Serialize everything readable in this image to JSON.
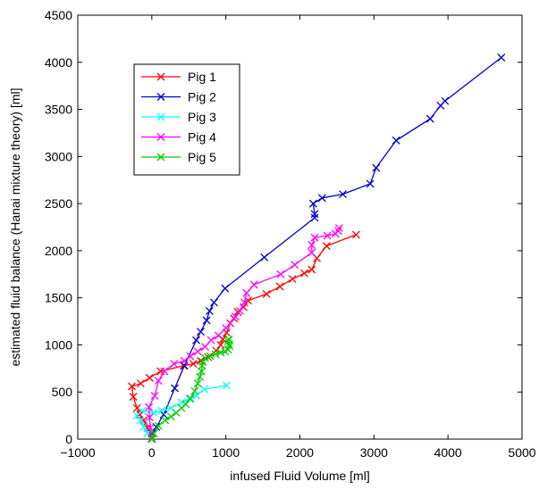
{
  "chart_data": {
    "type": "line",
    "xlabel": "infused Fluid Volume [ml]",
    "ylabel": "estimated fluid balance (Hanai mixture theory) [ml]",
    "xlim": [
      -1000,
      5000
    ],
    "ylim": [
      0,
      4500
    ],
    "xticks": [
      -1000,
      0,
      1000,
      2000,
      3000,
      4000,
      5000
    ],
    "xtick_labels": [
      "−1000",
      "0",
      "1000",
      "2000",
      "3000",
      "4000",
      "5000"
    ],
    "yticks": [
      0,
      500,
      1000,
      1500,
      2000,
      2500,
      3000,
      3500,
      4000,
      4500
    ],
    "ytick_labels": [
      "0",
      "500",
      "1000",
      "1500",
      "2000",
      "2500",
      "3000",
      "3500",
      "4000",
      "4500"
    ],
    "grid": false,
    "legend_position": "top-left",
    "marker": "x",
    "series": [
      {
        "name": "Pig 1",
        "color": "#ff0000",
        "points": [
          [
            0,
            0
          ],
          [
            -60,
            120
          ],
          [
            -110,
            200
          ],
          [
            -160,
            260
          ],
          [
            -200,
            330
          ],
          [
            -250,
            450
          ],
          [
            -270,
            560
          ],
          [
            -150,
            590
          ],
          [
            -30,
            650
          ],
          [
            120,
            720
          ],
          [
            430,
            780
          ],
          [
            560,
            800
          ],
          [
            660,
            830
          ],
          [
            760,
            870
          ],
          [
            870,
            940
          ],
          [
            930,
            1000
          ],
          [
            960,
            1060
          ],
          [
            1010,
            1130
          ],
          [
            1060,
            1230
          ],
          [
            1110,
            1280
          ],
          [
            1160,
            1350
          ],
          [
            1240,
            1400
          ],
          [
            1300,
            1470
          ],
          [
            1550,
            1540
          ],
          [
            1730,
            1620
          ],
          [
            1900,
            1700
          ],
          [
            2060,
            1760
          ],
          [
            2160,
            1800
          ],
          [
            2230,
            1920
          ],
          [
            2360,
            2050
          ],
          [
            2760,
            2170
          ]
        ]
      },
      {
        "name": "Pig 2",
        "color": "#0000cc",
        "points": [
          [
            0,
            60
          ],
          [
            60,
            130
          ],
          [
            160,
            260
          ],
          [
            310,
            540
          ],
          [
            440,
            780
          ],
          [
            600,
            1050
          ],
          [
            660,
            1140
          ],
          [
            740,
            1260
          ],
          [
            780,
            1360
          ],
          [
            840,
            1450
          ],
          [
            990,
            1600
          ],
          [
            1520,
            1930
          ],
          [
            2200,
            2350
          ],
          [
            2200,
            2390
          ],
          [
            2180,
            2500
          ],
          [
            2300,
            2560
          ],
          [
            2580,
            2600
          ],
          [
            2950,
            2710
          ],
          [
            3030,
            2880
          ],
          [
            3300,
            3170
          ],
          [
            3760,
            3400
          ],
          [
            3900,
            3540
          ],
          [
            3960,
            3590
          ],
          [
            4720,
            4050
          ]
        ]
      },
      {
        "name": "Pig 3",
        "color": "#00ffff",
        "points": [
          [
            0,
            10
          ],
          [
            -60,
            60
          ],
          [
            -110,
            130
          ],
          [
            -150,
            200
          ],
          [
            -200,
            250
          ],
          [
            -130,
            300
          ],
          [
            20,
            280
          ],
          [
            130,
            300
          ],
          [
            260,
            330
          ],
          [
            400,
            390
          ],
          [
            510,
            430
          ],
          [
            600,
            460
          ],
          [
            710,
            530
          ],
          [
            1010,
            570
          ]
        ]
      },
      {
        "name": "Pig 4",
        "color": "#ff00ff",
        "points": [
          [
            0,
            10
          ],
          [
            -20,
            120
          ],
          [
            -30,
            230
          ],
          [
            -40,
            340
          ],
          [
            40,
            460
          ],
          [
            90,
            620
          ],
          [
            170,
            720
          ],
          [
            300,
            800
          ],
          [
            440,
            830
          ],
          [
            520,
            880
          ],
          [
            620,
            930
          ],
          [
            720,
            980
          ],
          [
            800,
            1050
          ],
          [
            900,
            1100
          ],
          [
            1000,
            1180
          ],
          [
            1060,
            1230
          ],
          [
            1130,
            1300
          ],
          [
            1190,
            1360
          ],
          [
            1250,
            1450
          ],
          [
            1280,
            1550
          ],
          [
            1380,
            1640
          ],
          [
            1740,
            1750
          ],
          [
            1930,
            1850
          ],
          [
            2160,
            1980
          ],
          [
            2160,
            2060
          ],
          [
            2200,
            2140
          ],
          [
            2370,
            2160
          ],
          [
            2480,
            2180
          ],
          [
            2520,
            2210
          ],
          [
            2530,
            2240
          ]
        ]
      },
      {
        "name": "Pig 5",
        "color": "#00cc00",
        "points": [
          [
            0,
            0
          ],
          [
            30,
            60
          ],
          [
            90,
            140
          ],
          [
            180,
            200
          ],
          [
            260,
            240
          ],
          [
            330,
            280
          ],
          [
            400,
            330
          ],
          [
            460,
            370
          ],
          [
            520,
            430
          ],
          [
            580,
            510
          ],
          [
            620,
            590
          ],
          [
            650,
            660
          ],
          [
            670,
            720
          ],
          [
            680,
            780
          ],
          [
            690,
            820
          ],
          [
            720,
            860
          ],
          [
            790,
            880
          ],
          [
            860,
            900
          ],
          [
            930,
            920
          ],
          [
            990,
            930
          ],
          [
            1030,
            950
          ],
          [
            1050,
            990
          ],
          [
            1040,
            1010
          ],
          [
            1030,
            1040
          ],
          [
            1040,
            1060
          ]
        ]
      }
    ]
  }
}
